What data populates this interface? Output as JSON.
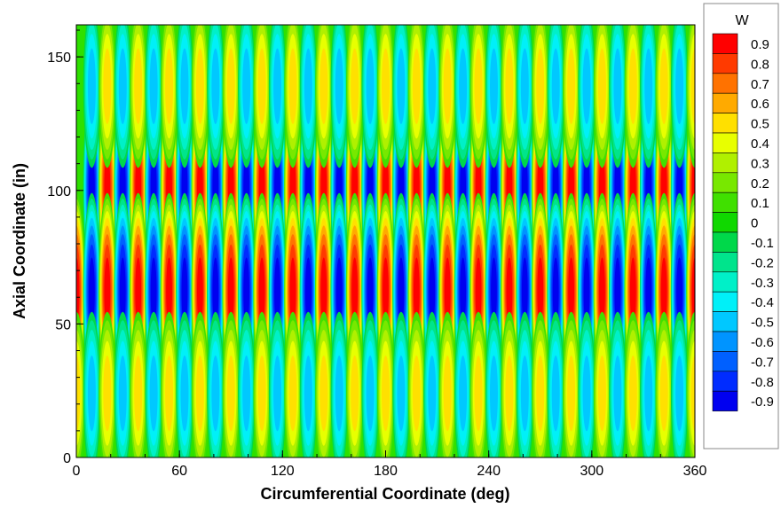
{
  "chart_data": {
    "type": "heatmap",
    "title": "",
    "xlabel": "Circumferential Coordinate (deg)",
    "ylabel": "Axial Coordinate (in)",
    "xlim": [
      0,
      360
    ],
    "ylim": [
      0,
      162
    ],
    "xticks": [
      "0",
      "60",
      "120",
      "180",
      "240",
      "300",
      "360"
    ],
    "yticks": [
      "0",
      "50",
      "100",
      "150"
    ],
    "legend": {
      "title": "W",
      "placement": "right",
      "levels": [
        "0.9",
        "0.8",
        "0.7",
        "0.6",
        "0.5",
        "0.4",
        "0.3",
        "0.2",
        "0.1",
        "0",
        "-0.1",
        "-0.2",
        "-0.3",
        "-0.4",
        "-0.5",
        "-0.6",
        "-0.7",
        "-0.8",
        "-0.9"
      ],
      "colors": [
        "#ff0000",
        "#ff3a00",
        "#ff7200",
        "#ffaa00",
        "#ffe000",
        "#e8ff00",
        "#b0f000",
        "#78e800",
        "#40e000",
        "#10d800",
        "#00d84a",
        "#00e48c",
        "#00f0c8",
        "#00f0f8",
        "#00c8ff",
        "#0094ff",
        "#0060ff",
        "#002cff",
        "#0000f0"
      ]
    },
    "field": {
      "variable": "W",
      "circumferential_wave_count": 20,
      "axial_wave_count": 2,
      "peak_abs_value": 0.95,
      "bands": [
        {
          "center_axial": 101,
          "amplitude": 0.95,
          "positive_peak_deg_start": 18
        },
        {
          "center_axial": 62,
          "amplitude": 0.95,
          "positive_peak_deg_start": 0
        },
        {
          "center_axial": 139,
          "amplitude": 0.45,
          "positive_peak_deg_start": 18
        },
        {
          "center_axial": 24,
          "amplitude": 0.45,
          "positive_peak_deg_start": 0
        }
      ]
    }
  }
}
